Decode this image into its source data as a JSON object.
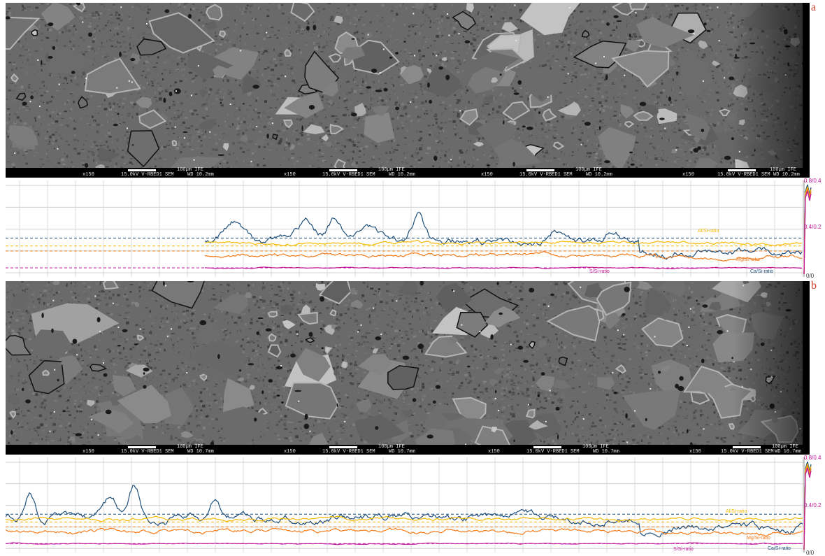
{
  "panels": [
    {
      "letter": "a",
      "tiles": [
        {
          "mag": "x150",
          "scale": "100µm IFE",
          "detector": "15.0kV V-RBED1  SEM",
          "wd": "WD 10.2mm"
        },
        {
          "mag": "x150",
          "scale": "100µm IFE",
          "detector": "15.0kV V-RBED1  SEM",
          "wd": "WD 10.2mm"
        },
        {
          "mag": "x150",
          "scale": "100µm IFE",
          "detector": "15.0kV V-RBED1  SEM",
          "wd": "WD 10.2mm"
        },
        {
          "mag": "x150",
          "scale": "100µm IFE",
          "detector": "15.0kV V-RBED1  SEM",
          "wd": "WD 10.2mm"
        }
      ],
      "ratio_plot": {
        "right_ticks": {
          "top": "0.8/0.4",
          "mid": "0.4/0.2",
          "bottom": "0/0"
        },
        "series": [
          {
            "name": "Al/Si-ratio",
            "color": "#f5b800"
          },
          {
            "name": "Mg/Si-ratio",
            "color": "#f07a1a"
          },
          {
            "name": "S/Si-ratio",
            "color": "#c0189a"
          },
          {
            "name": "Ca/Si-ratio",
            "color": "#1f4e79"
          }
        ]
      }
    },
    {
      "letter": "b",
      "tiles": [
        {
          "mag": "x150",
          "scale": "100µm IFE",
          "detector": "15.0kV V-RBED1  SEM",
          "wd": "WD 10.7mm"
        },
        {
          "mag": "x150",
          "scale": "100µm IFE",
          "detector": "15.0kV V-RBED1  SEM",
          "wd": "WD 10.7mm"
        },
        {
          "mag": "x150",
          "scale": "100µm IFE",
          "detector": "15.0kV V-RBED1  SEM",
          "wd": "WD 10.7mm"
        },
        {
          "mag": "x150",
          "scale": "100µm IFE",
          "detector": "15.0kV V-RBED1  SEM",
          "wd": "WD 10.7mm"
        }
      ],
      "ratio_plot": {
        "right_ticks": {
          "top": "0.8/0.4",
          "mid": "0.4/0.2",
          "bottom": "0/0"
        },
        "series": [
          {
            "name": "Al/Si-ratio",
            "color": "#f5b800"
          },
          {
            "name": "Mg/Si-ratio",
            "color": "#f07a1a"
          },
          {
            "name": "S/Si-ratio",
            "color": "#c0189a"
          },
          {
            "name": "Ca/Si-ratio",
            "color": "#1f4e79"
          }
        ]
      }
    }
  ]
}
